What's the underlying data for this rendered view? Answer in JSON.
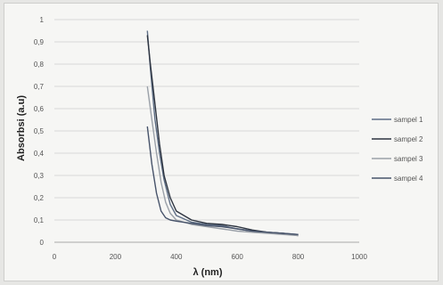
{
  "chart_data": {
    "type": "line",
    "xlabel": "λ (nm)",
    "ylabel": "Absorbsi (a.u)",
    "xlim": [
      0,
      1000
    ],
    "ylim": [
      0,
      1
    ],
    "x_ticks": [
      "0",
      "200",
      "400",
      "600",
      "800",
      "1000"
    ],
    "y_ticks": [
      "0",
      "0,1",
      "0,2",
      "0,3",
      "0,4",
      "0,5",
      "0,6",
      "0,7",
      "0,8",
      "0,9",
      "1"
    ],
    "grid": "horizontal",
    "legend_position": "right",
    "series": [
      {
        "name": "sampel 1",
        "color": "#5f6f86",
        "points": [
          [
            305,
            0.95
          ],
          [
            315,
            0.78
          ],
          [
            330,
            0.55
          ],
          [
            345,
            0.4
          ],
          [
            360,
            0.28
          ],
          [
            380,
            0.17
          ],
          [
            400,
            0.12
          ],
          [
            450,
            0.09
          ],
          [
            500,
            0.08
          ],
          [
            550,
            0.075
          ],
          [
            600,
            0.06
          ],
          [
            650,
            0.05
          ],
          [
            700,
            0.045
          ],
          [
            750,
            0.04
          ],
          [
            800,
            0.035
          ]
        ]
      },
      {
        "name": "sampel 2",
        "color": "#2d3440",
        "points": [
          [
            305,
            0.93
          ],
          [
            315,
            0.8
          ],
          [
            330,
            0.62
          ],
          [
            345,
            0.44
          ],
          [
            360,
            0.3
          ],
          [
            380,
            0.2
          ],
          [
            400,
            0.14
          ],
          [
            450,
            0.1
          ],
          [
            500,
            0.085
          ],
          [
            550,
            0.08
          ],
          [
            600,
            0.07
          ],
          [
            650,
            0.055
          ],
          [
            700,
            0.045
          ],
          [
            750,
            0.04
          ],
          [
            800,
            0.03
          ]
        ]
      },
      {
        "name": "sampel 3",
        "color": "#9aa0a8",
        "points": [
          [
            305,
            0.7
          ],
          [
            320,
            0.55
          ],
          [
            335,
            0.4
          ],
          [
            350,
            0.27
          ],
          [
            365,
            0.18
          ],
          [
            380,
            0.13
          ],
          [
            400,
            0.1
          ],
          [
            450,
            0.08
          ],
          [
            500,
            0.07
          ],
          [
            550,
            0.06
          ],
          [
            600,
            0.05
          ],
          [
            650,
            0.045
          ],
          [
            700,
            0.04
          ],
          [
            750,
            0.035
          ],
          [
            800,
            0.03
          ]
        ]
      },
      {
        "name": "sampel 4",
        "color": "#47536a",
        "points": [
          [
            305,
            0.52
          ],
          [
            320,
            0.35
          ],
          [
            335,
            0.22
          ],
          [
            350,
            0.14
          ],
          [
            365,
            0.11
          ],
          [
            380,
            0.1
          ],
          [
            400,
            0.095
          ],
          [
            450,
            0.085
          ],
          [
            500,
            0.075
          ],
          [
            550,
            0.07
          ],
          [
            600,
            0.06
          ],
          [
            650,
            0.05
          ],
          [
            700,
            0.045
          ],
          [
            750,
            0.04
          ],
          [
            800,
            0.035
          ]
        ]
      }
    ]
  }
}
